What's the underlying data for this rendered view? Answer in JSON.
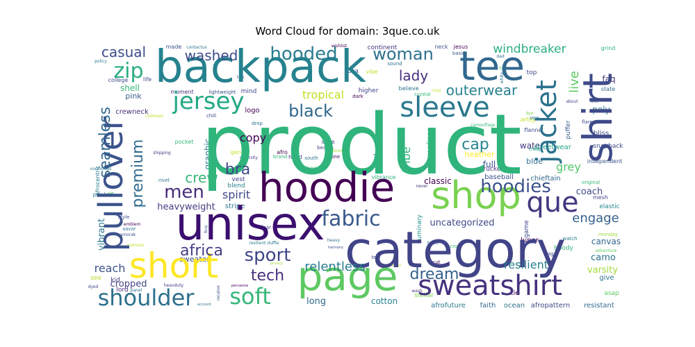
{
  "chart_data": {
    "type": "wordcloud",
    "title": "Word Cloud for domain: 3que.co.uk",
    "words": [
      {
        "text": "product",
        "weight": 100,
        "color": "#2fb47c"
      },
      {
        "text": "category",
        "weight": 70,
        "color": "#414487"
      },
      {
        "text": "unisex",
        "weight": 62,
        "color": "#3b0f6f"
      },
      {
        "text": "backpack",
        "weight": 60,
        "color": "#26828e"
      },
      {
        "text": "hoodie",
        "weight": 56,
        "color": "#440154"
      },
      {
        "text": "page",
        "weight": 54,
        "color": "#5ec962"
      },
      {
        "text": "shirt",
        "weight": 54,
        "color": "#3e4a89"
      },
      {
        "text": "tee",
        "weight": 52,
        "color": "#31688e"
      },
      {
        "text": "shop",
        "weight": 50,
        "color": "#7ad151"
      },
      {
        "text": "short",
        "weight": 48,
        "color": "#fde725"
      },
      {
        "text": "pullover",
        "weight": 46,
        "color": "#3b528b"
      },
      {
        "text": "sweatshirt",
        "weight": 40,
        "color": "#46337e"
      },
      {
        "text": "que",
        "weight": 38,
        "color": "#453781"
      },
      {
        "text": "sleeve",
        "weight": 38,
        "color": "#2a788e"
      },
      {
        "text": "jacket",
        "weight": 38,
        "color": "#2c728e"
      },
      {
        "text": "jersey",
        "weight": 32,
        "color": "#22a884"
      },
      {
        "text": "shoulder",
        "weight": 30,
        "color": "#2d708e"
      },
      {
        "text": "soft",
        "weight": 30,
        "color": "#35b779"
      },
      {
        "text": "fabric",
        "weight": 28,
        "color": "#38598c"
      },
      {
        "text": "zip",
        "weight": 28,
        "color": "#28ae80"
      },
      {
        "text": "hoodies",
        "weight": 24,
        "color": "#3b528b"
      },
      {
        "text": "sport",
        "weight": 24,
        "color": "#404688"
      },
      {
        "text": "men",
        "weight": 24,
        "color": "#472d7b"
      },
      {
        "text": "hooded",
        "weight": 24,
        "color": "#287c8e"
      },
      {
        "text": "woman",
        "weight": 22,
        "color": "#2c728e"
      },
      {
        "text": "black",
        "weight": 22,
        "color": "#30678d"
      },
      {
        "text": "seamless",
        "weight": 20,
        "color": "#31688e"
      },
      {
        "text": "premium",
        "weight": 20,
        "color": "#2f6c8e"
      },
      {
        "text": "africa",
        "weight": 20,
        "color": "#433e85"
      },
      {
        "text": "tech",
        "weight": 20,
        "color": "#472f7d"
      },
      {
        "text": "dream",
        "weight": 20,
        "color": "#34608d"
      },
      {
        "text": "cap",
        "weight": 20,
        "color": "#25848e"
      },
      {
        "text": "bra",
        "weight": 20,
        "color": "#3f4788"
      },
      {
        "text": "casual",
        "weight": 18,
        "color": "#3e4c8a"
      },
      {
        "text": "washed",
        "weight": 18,
        "color": "#3e4989"
      },
      {
        "text": "lady",
        "weight": 18,
        "color": "#46317e"
      },
      {
        "text": "outerwear",
        "weight": 18,
        "color": "#26818e"
      },
      {
        "text": "crew",
        "weight": 18,
        "color": "#35b779"
      },
      {
        "text": "engage",
        "weight": 16,
        "color": "#34608d"
      },
      {
        "text": "relentless",
        "weight": 16,
        "color": "#287d8e"
      },
      {
        "text": "live",
        "weight": 16,
        "color": "#5ec962"
      },
      {
        "text": "windbreaker",
        "weight": 15,
        "color": "#29af7f"
      },
      {
        "text": "reach",
        "weight": 14,
        "color": "#3b528b"
      },
      {
        "text": "resilient",
        "weight": 14,
        "color": "#277e8e"
      },
      {
        "text": "spirit",
        "weight": 14,
        "color": "#404688"
      },
      {
        "text": "copy",
        "weight": 14,
        "color": "#440154"
      },
      {
        "text": "tropical",
        "weight": 14,
        "color": "#c2df23"
      },
      {
        "text": "grey",
        "weight": 14,
        "color": "#52c569"
      },
      {
        "text": "tribe",
        "weight": 14,
        "color": "#2fb47c"
      },
      {
        "text": "crewneck",
        "weight": 8,
        "color": "#472c7a"
      }
    ],
    "small_words": [
      {
        "text": "heavyweight",
        "color": "#433e85"
      },
      {
        "text": "graphic",
        "color": "#277f8e"
      },
      {
        "text": "uncategorized",
        "color": "#3e4a89"
      },
      {
        "text": "classic",
        "color": "#440154"
      },
      {
        "text": "coach",
        "color": "#404688"
      },
      {
        "text": "canvas",
        "color": "#32658e"
      },
      {
        "text": "camo",
        "color": "#2c728e"
      },
      {
        "text": "varsity",
        "color": "#a2da37"
      },
      {
        "text": "cotton",
        "color": "#26828e"
      },
      {
        "text": "long",
        "color": "#31688e"
      },
      {
        "text": "cropped",
        "color": "#414487"
      },
      {
        "text": "vibrant",
        "color": "#2a788e"
      },
      {
        "text": "shell",
        "color": "#35b779"
      },
      {
        "text": "pink",
        "color": "#38598c"
      },
      {
        "text": "full",
        "color": "#3b528b"
      },
      {
        "text": "poly",
        "color": "#287d8e"
      },
      {
        "text": "faq",
        "color": "#46317e"
      },
      {
        "text": "water",
        "color": "#453781"
      },
      {
        "text": "blue",
        "color": "#2d708e"
      },
      {
        "text": "sweater",
        "color": "#3e4989"
      },
      {
        "text": "activewear",
        "color": "#25848e"
      },
      {
        "text": "cardigan",
        "color": "#2fb47c"
      },
      {
        "text": "streetwear",
        "color": "#1fa187"
      },
      {
        "text": "baseball",
        "color": "#3b528b"
      },
      {
        "text": "chieftain",
        "color": "#30678d"
      },
      {
        "text": "luminary",
        "color": "#21918c"
      },
      {
        "text": "afrofuture",
        "color": "#2a788e"
      },
      {
        "text": "faith",
        "color": "#31688e"
      },
      {
        "text": "ocean",
        "color": "#2c728e"
      },
      {
        "text": "afropattern",
        "color": "#3e4c8a"
      },
      {
        "text": "resistant",
        "color": "#2f6c8e"
      },
      {
        "text": "stellar",
        "color": "#7ad151"
      },
      {
        "text": "tie",
        "color": "#440154"
      },
      {
        "text": "lord",
        "color": "#472d7b"
      },
      {
        "text": "kid",
        "color": "#46337e"
      },
      {
        "text": "see",
        "color": "#b5de2b"
      },
      {
        "text": "give",
        "color": "#2c728e"
      },
      {
        "text": "asap",
        "color": "#5ec962"
      },
      {
        "text": "hoody",
        "color": "#2fb47c"
      },
      {
        "text": "heather",
        "color": "#fde725"
      },
      {
        "text": "trucker",
        "color": "#46317e"
      },
      {
        "text": "puffer",
        "color": "#38598c"
      },
      {
        "text": "bliss",
        "color": "#3e4989"
      },
      {
        "text": "snapback",
        "color": "#404688"
      },
      {
        "text": "independent",
        "color": "#3b528b"
      },
      {
        "text": "elastic",
        "color": "#25848e"
      },
      {
        "text": "mesh",
        "color": "#414487"
      },
      {
        "text": "lunar",
        "color": "#440154"
      },
      {
        "text": "game",
        "color": "#404688"
      },
      {
        "text": "stripe",
        "color": "#2a788e"
      },
      {
        "text": "blend",
        "color": "#287d8e"
      },
      {
        "text": "vest",
        "color": "#433e85"
      },
      {
        "text": "logo",
        "color": "#440154"
      },
      {
        "text": "mind",
        "color": "#3e4989"
      },
      {
        "text": "moment",
        "color": "#46317e"
      },
      {
        "text": "lightweight",
        "color": "#3b528b"
      },
      {
        "text": "college",
        "color": "#3e4c8a"
      },
      {
        "text": "life",
        "color": "#404688"
      },
      {
        "text": "higher",
        "color": "#414487"
      },
      {
        "text": "believe",
        "color": "#2c728e"
      },
      {
        "text": "artsy",
        "color": "#c2df23"
      },
      {
        "text": "flannel",
        "color": "#3e4989"
      },
      {
        "text": "state",
        "color": "#30678d"
      },
      {
        "text": "top",
        "color": "#404688"
      },
      {
        "text": "neck",
        "color": "#3b528b"
      },
      {
        "text": "jesus",
        "color": "#440154"
      },
      {
        "text": "basic",
        "color": "#38598c"
      },
      {
        "text": "grind",
        "color": "#2fb47c"
      },
      {
        "text": "continent",
        "color": "#46337e"
      },
      {
        "text": "usa",
        "color": "#3e4c8a"
      },
      {
        "text": "sound",
        "color": "#2d708e"
      },
      {
        "text": "vibe",
        "color": "#c2df23"
      },
      {
        "text": "wishlist",
        "color": "#440154"
      },
      {
        "text": "made",
        "color": "#3b528b"
      },
      {
        "text": "contactus",
        "color": "#2a788e"
      },
      {
        "text": "policy",
        "color": "#2c728e"
      },
      {
        "text": "trip",
        "color": "#3b528b"
      },
      {
        "text": "dark",
        "color": "#440154"
      },
      {
        "text": "crystal",
        "color": "#35b779"
      },
      {
        "text": "white",
        "color": "#2c728e"
      },
      {
        "text": "about",
        "color": "#404688"
      },
      {
        "text": "finn",
        "color": "#31688e"
      },
      {
        "text": "flare",
        "color": "#3e4989"
      },
      {
        "text": "dad",
        "color": "#2c728e"
      },
      {
        "text": "hat",
        "color": "#5ec962"
      },
      {
        "text": "cozy",
        "color": "#c2df23"
      },
      {
        "text": "dye",
        "color": "#7ad151"
      },
      {
        "text": "sew",
        "color": "#2a788e"
      },
      {
        "text": "camouflage",
        "color": "#35b779"
      },
      {
        "text": "cheap",
        "color": "#1fa187"
      },
      {
        "text": "term",
        "color": "#3e4c8a"
      },
      {
        "text": "original",
        "color": "#35b779"
      },
      {
        "text": "chill",
        "color": "#404688"
      },
      {
        "text": "coolness",
        "color": "#c2df23"
      },
      {
        "text": "drop",
        "color": "#2d708e"
      },
      {
        "text": "afrocentric",
        "color": "#2a788e"
      },
      {
        "text": "pocket",
        "color": "#35b779"
      },
      {
        "text": "gender",
        "color": "#c2df23"
      },
      {
        "text": "diversity",
        "color": "#433e85"
      },
      {
        "text": "afro",
        "color": "#440154"
      },
      {
        "text": "brand",
        "color": "#2fb47c"
      },
      {
        "text": "beanie",
        "color": "#46317e"
      },
      {
        "text": "shoe",
        "color": "#3e4989"
      },
      {
        "text": "None",
        "color": "#440154"
      },
      {
        "text": "hood",
        "color": "#433e85"
      },
      {
        "text": "south",
        "color": "#2c728e"
      },
      {
        "text": "forest",
        "color": "#a2da37"
      },
      {
        "text": "quilted",
        "color": "#2d708e"
      },
      {
        "text": "beach",
        "color": "#35b779"
      },
      {
        "text": "shipping",
        "color": "#46317e"
      },
      {
        "text": "vociferous",
        "color": "#2a788e"
      },
      {
        "text": "rivet",
        "color": "#2c728e"
      },
      {
        "text": "printed",
        "color": "#2c728e"
      },
      {
        "text": "day",
        "color": "#5ec962"
      },
      {
        "text": "style",
        "color": "#3b528b"
      },
      {
        "text": "emblem",
        "color": "#440154"
      },
      {
        "text": "savor",
        "color": "#2d708e"
      },
      {
        "text": "amorak",
        "color": "#3b528b"
      },
      {
        "text": "oversize",
        "color": "#c2df23"
      },
      {
        "text": "dyed",
        "color": "#404688"
      },
      {
        "text": "panel",
        "color": "#2d708e"
      },
      {
        "text": "heavduty",
        "color": "#46317e"
      },
      {
        "text": "account",
        "color": "#2c728e"
      },
      {
        "text": "receive",
        "color": "#3b528b"
      },
      {
        "text": "pervasive",
        "color": "#440154"
      },
      {
        "text": "resilient duffle",
        "color": "#2a788e"
      },
      {
        "text": "privacy",
        "color": "#a2da37"
      },
      {
        "text": "fear",
        "color": "#404688"
      },
      {
        "text": "harmony",
        "color": "#3e4c8a"
      },
      {
        "text": "buy",
        "color": "#3b528b"
      },
      {
        "text": "heavy",
        "color": "#2d708e"
      },
      {
        "text": "condition",
        "color": "#c2df23"
      },
      {
        "text": "ticket",
        "color": "#31688e"
      },
      {
        "text": "crop",
        "color": "#35b779"
      },
      {
        "text": "vibrance",
        "color": "#2fb47c"
      },
      {
        "text": "never",
        "color": "#46317e"
      },
      {
        "text": "cut",
        "color": "#440154"
      },
      {
        "text": "wash",
        "color": "#46317e"
      },
      {
        "text": "watch",
        "color": "#2a788e"
      },
      {
        "text": "bag",
        "color": "#3e4989"
      },
      {
        "text": "monday",
        "color": "#a2da37"
      },
      {
        "text": "adventure",
        "color": "#5ec962"
      },
      {
        "text": "tek",
        "color": "#404688"
      }
    ]
  }
}
